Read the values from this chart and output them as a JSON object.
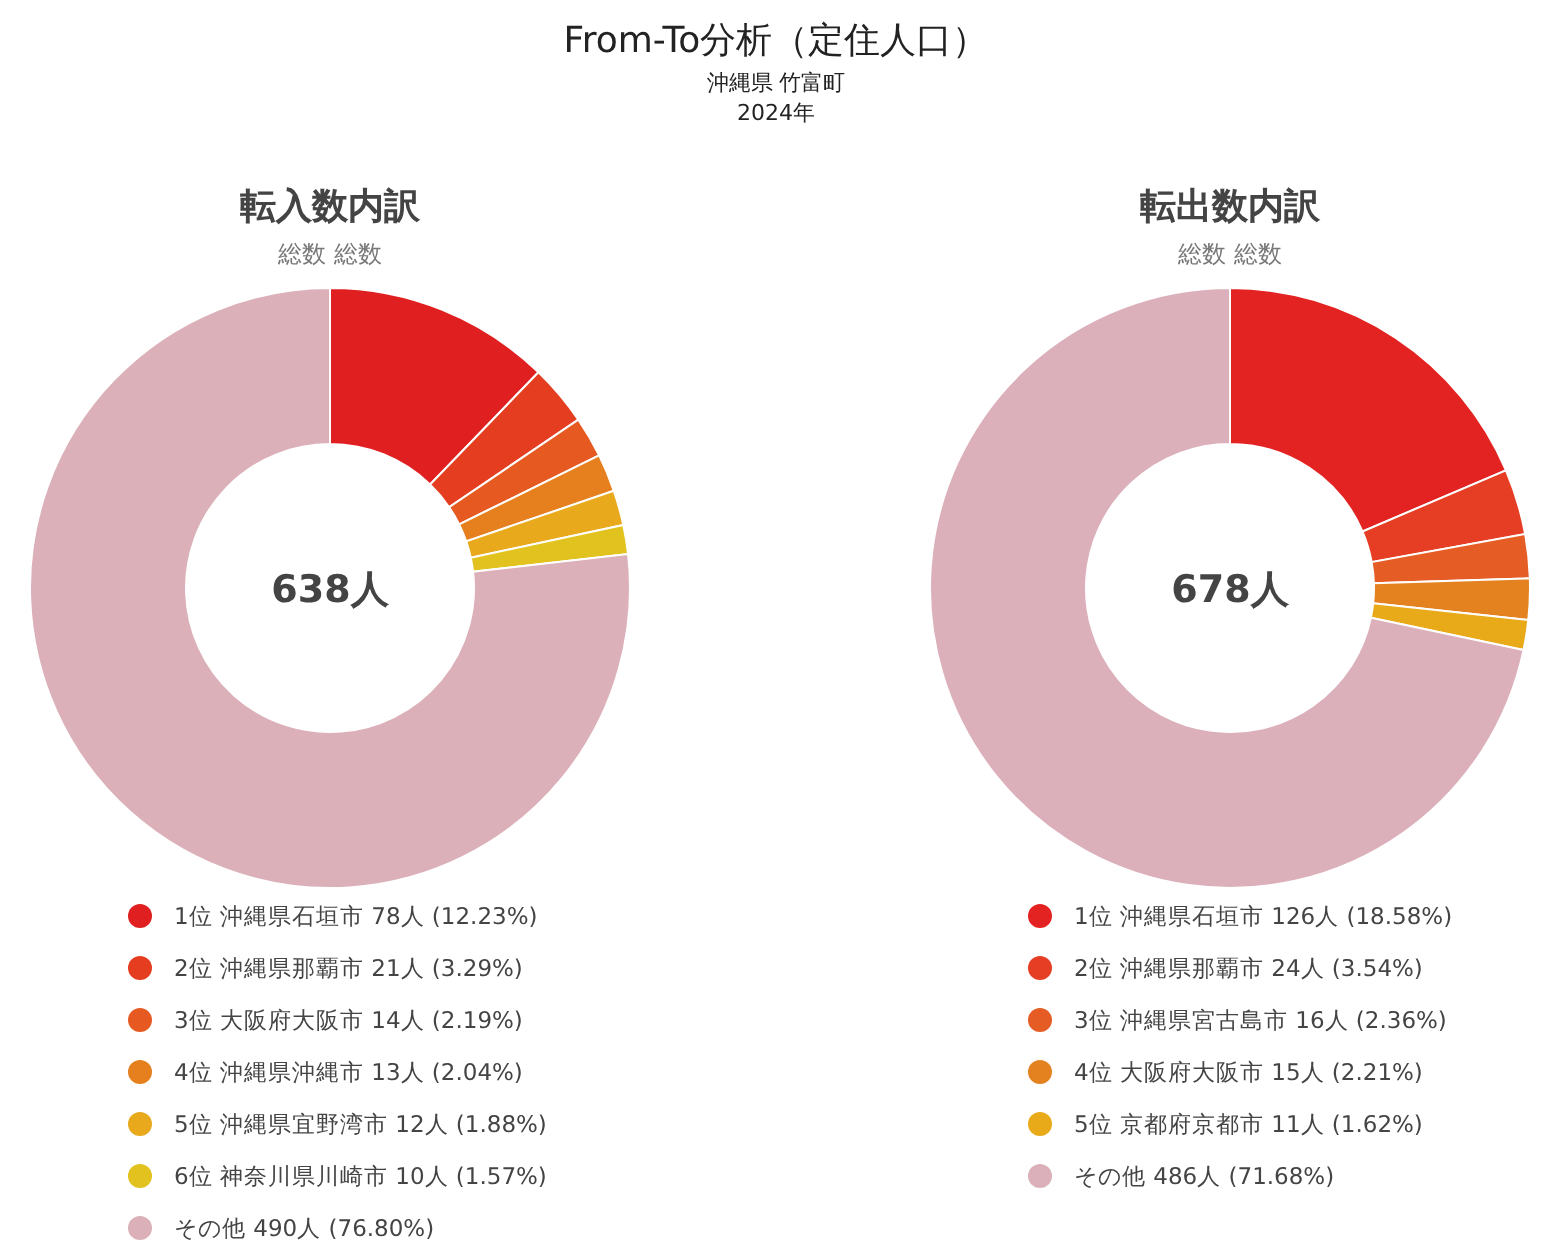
{
  "chart_data": [
    {
      "type": "other",
      "title": "From-To分析（定住人口）",
      "subtitle": "沖縄県 竹富町",
      "annotations": [
        "2024年"
      ]
    },
    {
      "type": "donut",
      "title": "転入数内訳",
      "subtitle": "総数 総数",
      "annotations": [
        "638人"
      ],
      "legend": "bottom",
      "categories": [
        "1位 沖縄県石垣市",
        "2位 沖縄県那覇市",
        "3位 大阪府大阪市",
        "4位 沖縄県沖縄市",
        "5位 沖縄県宜野湾市",
        "6位 神奈川県川崎市",
        "その他"
      ],
      "values": [
        78,
        21,
        14,
        13,
        12,
        10,
        490
      ],
      "value_labels": [
        "78人 (12.23%)",
        "21人 (3.29%)",
        "14人 (2.19%)",
        "13人 (2.04%)",
        "12人 (1.88%)",
        "10人 (1.57%)",
        "490人 (76.80%)"
      ],
      "colors": [
        "#e02020",
        "#e43d20",
        "#e65a22",
        "#e6801f",
        "#e9a91c",
        "#e2c21e",
        "#dbb0b9"
      ]
    },
    {
      "type": "donut",
      "title": "転出数内訳",
      "subtitle": "総数 総数",
      "annotations": [
        "678人"
      ],
      "legend": "bottom",
      "categories": [
        "1位 沖縄県石垣市",
        "2位 沖縄県那覇市",
        "3位 沖縄県宮古島市",
        "4位 大阪府大阪市",
        "5位 京都府京都市",
        "その他"
      ],
      "values": [
        126,
        24,
        16,
        15,
        11,
        486
      ],
      "value_labels": [
        "126人 (18.58%)",
        "24人 (3.54%)",
        "16人 (2.36%)",
        "15人 (2.21%)",
        "11人 (1.62%)",
        "486人 (71.68%)"
      ],
      "colors": [
        "#e32222",
        "#e53e24",
        "#e55d24",
        "#e4821f",
        "#e9aa1a",
        "#dbb0bb"
      ]
    }
  ]
}
